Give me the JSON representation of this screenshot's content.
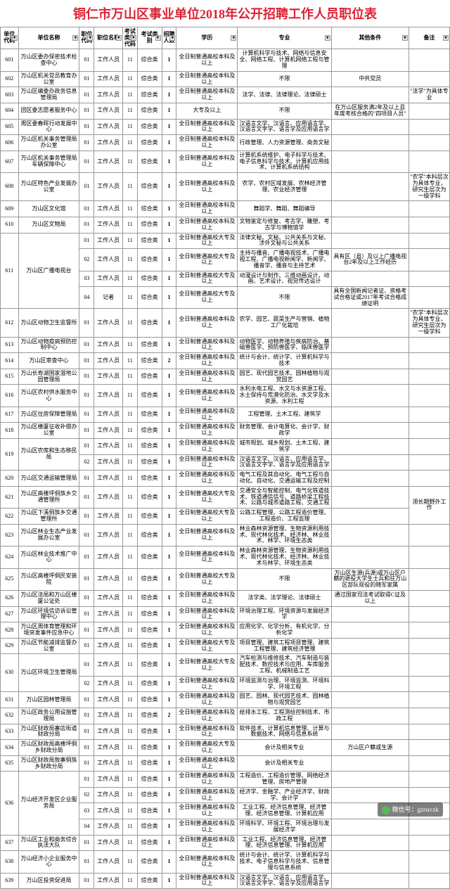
{
  "title": "铜仁市万山区事业单位2018年公开招聘工作人员职位表",
  "headers": [
    "单位代码",
    "单位名称",
    "职位代码",
    "职位名称",
    "考试类别代码",
    "考试类别",
    "招聘人数",
    "学历",
    "专业",
    "其他条件",
    "备注"
  ],
  "watermark": "微信号：gzrsrczk",
  "rows": [
    {
      "c": "601",
      "n": "万山区委办保密技术检查中心",
      "p": "01",
      "pn": "工作人员",
      "tc": "11",
      "tn": "综合类",
      "q": "1",
      "e": "全日制普通高校本科及以上",
      "m": "计算机科学与技术、网络与信息安全、网络工程、计算机网络工程与管理",
      "o": "",
      "r": ""
    },
    {
      "c": "602",
      "n": "万山区机关党员教育办公室",
      "p": "01",
      "pn": "工作人员",
      "tc": "11",
      "tn": "综合类",
      "q": "1",
      "e": "全日制普通高校本科及以上",
      "m": "不限",
      "o": "中共党员",
      "r": ""
    },
    {
      "c": "603",
      "n": "万山区编委办政务信息管理局",
      "p": "01",
      "pn": "工作人员",
      "tc": "11",
      "tn": "综合类",
      "q": "1",
      "e": "全日制普通高校本科及以上",
      "m": "法学、法律、法律理论、法律硕士",
      "o": "",
      "r": "\"法学\"为具体专业"
    },
    {
      "c": "604",
      "n": "团区委志愿者服务中心",
      "p": "01",
      "pn": "工作人员",
      "tc": "11",
      "tn": "综合类",
      "q": "1",
      "e": "大专及以上",
      "m": "不限",
      "o": "在万山区服务满2年及以上且年度考核合格的\"四项目人员\"",
      "r": ""
    },
    {
      "c": "605",
      "n": "周区委春晖行动发展中心",
      "p": "01",
      "pn": "工作人员",
      "tc": "11",
      "tn": "综合类",
      "q": "1",
      "e": "全日制普通高校本科及以上",
      "m": "汉语言文学、汉语言、应用语言学、汉语言文字学、语言学及应用语言学",
      "o": "",
      "r": ""
    },
    {
      "c": "606",
      "n": "万山区机关事务管理局办公室",
      "p": "01",
      "pn": "工作人员",
      "tc": "11",
      "tn": "综合类",
      "q": "1",
      "e": "全日制普通高校本科及以上",
      "m": "行政管理、人力资源管理、商务文秘",
      "o": "",
      "r": ""
    },
    {
      "c": "607",
      "n": "万山区机关事务管理局车辆保障中心",
      "p": "01",
      "pn": "工作人员",
      "tc": "11",
      "tn": "综合类",
      "q": "1",
      "e": "全日制普通高校本科及以上",
      "m": "计算机系统维护、电子科学与技术、电子信息科学与技术、计算机应用技术、计算机系统结构",
      "o": "",
      "r": ""
    },
    {
      "c": "608",
      "n": "万山区特色产业发展办公室",
      "p": "01",
      "pn": "工作人员",
      "tc": "11",
      "tn": "综合类",
      "q": "1",
      "e": "全日制普通高校本科及以上",
      "m": "农学、农村区域发展、农林经济管理、农业经济管理",
      "o": "",
      "r": "\"农学\"本科层次为具体专业，研究生层次为一级学科"
    },
    {
      "c": "609",
      "n": "万山区文化馆",
      "p": "01",
      "pn": "工作人员",
      "tc": "11",
      "tn": "综合类",
      "q": "1",
      "e": "全日制普通高校本科及以上",
      "m": "舞蹈学、舞蹈、舞蹈编导",
      "o": "",
      "r": ""
    },
    {
      "c": "610",
      "n": "万山区文物局",
      "p": "01",
      "pn": "工作人员",
      "tc": "11",
      "tn": "综合类",
      "q": "1",
      "e": "全日制普通高校本科及以上",
      "m": "文物鉴定与修复、考古学、雕塑、考古学与博物馆学",
      "o": "",
      "r": ""
    },
    {
      "c": "611",
      "n": "万山区广播电视台",
      "rs": 4,
      "p": "01",
      "pn": "工作人员",
      "tc": "11",
      "tn": "综合类",
      "q": "1",
      "e": "全日制普通高校大专及以上",
      "m": "法律文秘、文秘、公共关系与文秘、涉外文秘与公共关系",
      "o": "",
      "r": ""
    },
    {
      "c": "",
      "n": "",
      "p": "02",
      "pn": "工作人员",
      "tc": "11",
      "tn": "综合类",
      "q": "1",
      "e": "全日制普通高校大专及以上",
      "m": "主持与播音、广播电视技术、广播电视工程、广播电视新闻学、新闻学、播音学、播音与主持艺术",
      "o": "具有区（县）及以上广播电视台2年及以上工作经历",
      "r": ""
    },
    {
      "c": "",
      "n": "",
      "p": "03",
      "pn": "工作人员",
      "tc": "11",
      "tn": "综合类",
      "q": "1",
      "e": "全日制普通高校大专及以上",
      "m": "动漫设计与制作、三维动画设计、动画、艺术设计、视觉传达设计",
      "o": "",
      "r": ""
    },
    {
      "c": "",
      "n": "",
      "p": "04",
      "pn": "记者",
      "tc": "11",
      "tn": "综合类",
      "q": "1",
      "e": "全日制普通高校大专及以上",
      "m": "不限",
      "o": "具有全国新闻记者证、资格考试合格证或2017年考试合格成绩证明",
      "r": ""
    },
    {
      "c": "612",
      "n": "万山区动物卫生监督所",
      "p": "01",
      "pn": "工作人员",
      "tc": "11",
      "tn": "综合类",
      "q": "1",
      "e": "全日制普通高校本科及以上",
      "m": "农学、园艺、蔬菜生产与营销、植物工厂化栽培",
      "o": "",
      "r": "\"农学\"本科层次为具体专业，研究生层次为一级学科"
    },
    {
      "c": "613",
      "n": "万山区动物疫病预防控制中心",
      "p": "01",
      "pn": "工作人员",
      "tc": "11",
      "tn": "综合类",
      "q": "1",
      "e": "全日制普通高校本科及以上",
      "m": "动物医学、动物养殖与疾病防治、基础兽医学、预防兽医学、临床兽医学",
      "o": "",
      "r": ""
    },
    {
      "c": "614",
      "n": "万山区审查中心",
      "p": "01",
      "pn": "工作人员",
      "tc": "11",
      "tn": "综合类",
      "q": "2",
      "e": "全日制普通高校本科及以上",
      "m": "统计与会计、统计学、计算机科学与技术",
      "o": "",
      "r": ""
    },
    {
      "c": "615",
      "n": "万山长寿湖国家湿地公园管理局",
      "p": "01",
      "pn": "工作人员",
      "tc": "11",
      "tn": "综合类",
      "q": "1",
      "e": "全日制普通高校本科及以上",
      "m": "园艺、现代园艺技术、园林植物与观赏园艺",
      "o": "",
      "r": ""
    },
    {
      "c": "616",
      "n": "万山区农村供水服务中心",
      "p": "01",
      "pn": "工作人员",
      "tc": "11",
      "tn": "综合类",
      "q": "1",
      "e": "全日制普通高校本科及以上",
      "m": "水利水电工程、水文与水资源工程、水土保持与荒漠化防治、水文学及水资源、水利工程",
      "o": "",
      "r": ""
    },
    {
      "c": "617",
      "n": "万山区住房保障管理局",
      "p": "01",
      "pn": "工作人员",
      "tc": "11",
      "tn": "综合类",
      "q": "1",
      "e": "全日制普通高校本科及以上",
      "m": "工程管理、土木工程、建筑学",
      "o": "",
      "r": ""
    },
    {
      "c": "618",
      "n": "万山区楼厦征收补偿办公室",
      "p": "01",
      "pn": "工作人员",
      "tc": "11",
      "tn": "综合类",
      "q": "1",
      "e": "全日制普通高校本科及以上",
      "m": "财务管理、会计电算化、会计学、财政学",
      "o": "",
      "r": ""
    },
    {
      "c": "619",
      "n": "万山区农库和生态移民局",
      "rs": 2,
      "p": "01",
      "pn": "工作人员",
      "tc": "11",
      "tn": "综合类",
      "q": "1",
      "e": "全日制普通高校本科及以上",
      "m": "城市规划、城乡规划、土木工程、建筑学",
      "o": "",
      "r": ""
    },
    {
      "c": "",
      "n": "",
      "p": "02",
      "pn": "工作人员",
      "tc": "11",
      "tn": "综合类",
      "q": "1",
      "e": "全日制普通高校本科及以上",
      "m": "汉语言文学、汉语言、应用语言学、汉语言文字学、语言学及应用语言学",
      "o": "",
      "r": ""
    },
    {
      "c": "620",
      "n": "万山区交通运输管理局",
      "p": "01",
      "pn": "工作人员",
      "tc": "11",
      "tn": "综合类",
      "q": "1",
      "e": "全日制普通高校本科及以上",
      "m": "电气工程及其自动化、电气工程与自动化、自动化、交通运输工程及控制",
      "o": "",
      "r": ""
    },
    {
      "c": "621",
      "n": "万山区高楼坪侗族乡交通管理所",
      "p": "01",
      "pn": "工作人员",
      "tc": "11",
      "tn": "综合类",
      "q": "1",
      "e": "全日制普通高校大专及以上",
      "m": "交通安全与智能控制、电气化铁道技术、铁道通信信号、道路桥梁工程技术、公路与城市道路工程、交通工程",
      "o": "",
      "r": "须长期野外工作",
      "rrs": 2
    },
    {
      "c": "622",
      "n": "万山区下溪侗族乡交通管理所",
      "p": "01",
      "pn": "工作人员",
      "tc": "11",
      "tn": "综合类",
      "q": "1",
      "e": "全日制普通高校大专及以上",
      "m": "公路工程管理、公路工程造价管理、工程造价、工程监理",
      "o": "",
      "r": ""
    },
    {
      "c": "623",
      "n": "万山区林业生态产业发展办公室",
      "p": "01",
      "pn": "工作人员",
      "tc": "11",
      "tn": "综合类",
      "q": "1",
      "e": "全日制普通高校本科及以上",
      "m": "林业森林资源管理、生物资源利用技术、现代林化技术、经济林、林业技术、林学、环境生态类",
      "o": "",
      "r": ""
    },
    {
      "c": "624",
      "n": "万山区林业技术推广中心",
      "p": "01",
      "pn": "工作人员",
      "tc": "11",
      "tn": "综合类",
      "q": "1",
      "e": "全日制普通高校本科及以上",
      "m": "林业森林资源管理、生物资源利用技术、现代林化技术、经济林、林业技术与林学、环境生态类",
      "o": "",
      "r": ""
    },
    {
      "c": "625",
      "n": "万山区高楼坪侗民安装院",
      "p": "01",
      "pn": "工作人员",
      "tc": "11",
      "tn": "综合类",
      "q": "1",
      "e": "全日制普通高校大专及以上",
      "m": "不限",
      "o": "万山区生源(兵源)或万山区户籍的退役大学生士兵和驻万山区部队现役的随军家属",
      "r": ""
    },
    {
      "c": "626",
      "n": "万山区法局和万山区楼厦公证处",
      "p": "01",
      "pn": "工作人员",
      "tc": "11",
      "tn": "综合类",
      "q": "1",
      "e": "全日制普通高校本科及以上",
      "m": "法学类、法学理论、法律硕士",
      "o": "通过国家司法考试取得C证及以上",
      "r": ""
    },
    {
      "c": "627",
      "n": "万山区环境信访诉讼管理中心",
      "p": "01",
      "pn": "工作人员",
      "tc": "11",
      "tn": "综合类",
      "q": "1",
      "e": "全日制普通高校本科及以上",
      "m": "环境治理工程、环境资源与发展经济学",
      "o": "",
      "r": ""
    },
    {
      "c": "628",
      "n": "万山区周体育管理和环境突发事件应急中心",
      "p": "01",
      "pn": "工作人员",
      "tc": "11",
      "tn": "综合类",
      "q": "1",
      "e": "全日制普通高校本科及以上",
      "m": "应用化学、化学分析、有机化学、分析化学",
      "o": "",
      "r": ""
    },
    {
      "c": "629",
      "n": "万山区节能减排监督办公室",
      "p": "01",
      "pn": "工作人员",
      "tc": "11",
      "tn": "综合类",
      "q": "1",
      "e": "全日制普通高校大专及以上",
      "m": "项目管理、建筑工程项目管理、建筑工程管理、建筑经济管理",
      "o": "",
      "r": ""
    },
    {
      "c": "630",
      "n": "万山区环境卫生管理局",
      "rs": 2,
      "p": "01",
      "pn": "工作人员",
      "tc": "11",
      "tn": "综合类",
      "q": "1",
      "e": "全日制普通高校大专及以上",
      "m": "汽车检测与维修技术、汽车制造与装配技术、数控技术与应用、车库服务工程、机械制造工艺",
      "o": "",
      "r": ""
    },
    {
      "c": "",
      "n": "",
      "p": "02",
      "pn": "工作人员",
      "tc": "11",
      "tn": "综合类",
      "q": "1",
      "e": "全日制普通高校本科及以上",
      "m": "环境监测与治理、环境监测、环境科学、环境工程",
      "o": "",
      "r": ""
    },
    {
      "c": "631",
      "n": "万山区园林管理局",
      "p": "01",
      "pn": "工作人员",
      "tc": "11",
      "tn": "综合类",
      "q": "1",
      "e": "全日制普通高校本科及以上",
      "m": "园艺、园林、现代园艺技术、园林植物与观赏园艺",
      "o": "",
      "r": ""
    },
    {
      "c": "632",
      "n": "万山区政务公用设施管理局",
      "p": "01",
      "pn": "工作人员",
      "tc": "11",
      "tn": "综合类",
      "q": "2",
      "e": "全日制普通高校本科及以上",
      "m": "给排水工程、工程测绘控制技术、市政工程",
      "o": "",
      "r": ""
    },
    {
      "c": "633",
      "n": "万山区财政局寨店街道财政分局",
      "p": "01",
      "pn": "工作人员",
      "tc": "11",
      "tn": "综合类",
      "q": "1",
      "e": "全日制普通高校本科及以上",
      "m": "软件技术、计算机信息管理、计算与数据技术、网络与信息系统",
      "o": "",
      "r": ""
    },
    {
      "c": "634",
      "n": "万山区财政局高楼坪侗乡财政分局",
      "p": "01",
      "pn": "工作人员",
      "tc": "11",
      "tn": "综合类",
      "q": "1",
      "e": "全日制普通高校大专及以上",
      "m": "会计及相关专业",
      "o": "万山区户籍或生源",
      "r": ""
    },
    {
      "c": "635",
      "n": "万山区财政局敖寨侗族乡财政分局",
      "p": "01",
      "pn": "工作人员",
      "tc": "11",
      "tn": "综合类",
      "q": "1",
      "e": "全日制普通高校本科及以上",
      "m": "会计及相关专业",
      "o": "",
      "r": ""
    },
    {
      "c": "636",
      "n": "万山经济开发区企业服务局",
      "rs": 4,
      "p": "01",
      "pn": "工作人员",
      "tc": "11",
      "tn": "综合类",
      "q": "1",
      "e": "全日制普通高校本科及以上",
      "m": "工程造价、工程造价管理、网络经济管理、房地产管理",
      "o": "",
      "r": ""
    },
    {
      "c": "",
      "n": "",
      "p": "02",
      "pn": "工作人员",
      "tc": "11",
      "tn": "综合类",
      "q": "1",
      "e": "全日制普通高校本科及以上",
      "m": "经济学、金融学、产业经济学、财政学、会计学",
      "o": "",
      "r": ""
    },
    {
      "c": "",
      "n": "",
      "p": "03",
      "pn": "工作人员",
      "tc": "11",
      "tn": "综合类",
      "q": "1",
      "e": "全日制普通高校本科及以上",
      "m": "工业工程、经济信息管理、经济管理、经济信息管理、计算机应用",
      "o": "",
      "r": ""
    },
    {
      "c": "",
      "n": "",
      "p": "04",
      "pn": "工作人员",
      "tc": "11",
      "tn": "综合类",
      "q": "1",
      "e": "全日制普通高校本科及以上",
      "m": "环境科学、环境工程、环境治理与发展经济学",
      "o": "",
      "r": ""
    },
    {
      "c": "637",
      "n": "万山区工业和商务综合执法大队",
      "p": "01",
      "pn": "工作人员",
      "tc": "11",
      "tn": "综合类",
      "q": "1",
      "e": "全日制普通高校本科及以上",
      "m": "工业工程、经济信息管理、经济管理、经济信息管理、计算机应用",
      "o": "",
      "r": ""
    },
    {
      "c": "638",
      "n": "万山经济小企业服务中心",
      "p": "01",
      "pn": "工作人员",
      "tc": "11",
      "tn": "综合类",
      "q": "1",
      "e": "全日制普通高校本科及以上",
      "m": "统计与会计、统计学、计算机科学与技术、电子信息科学与技术、信息管理与信息系统",
      "o": "",
      "r": ""
    },
    {
      "c": "639",
      "n": "万山区投资促进局",
      "p": "01",
      "pn": "工作人员",
      "tc": "11",
      "tn": "综合类",
      "q": "1",
      "e": "全日制普通高校本科及以上",
      "m": "汉语言文学、汉语言、应用语言学、汉语言文字学、语言学及应用语言学",
      "o": "",
      "r": ""
    }
  ]
}
